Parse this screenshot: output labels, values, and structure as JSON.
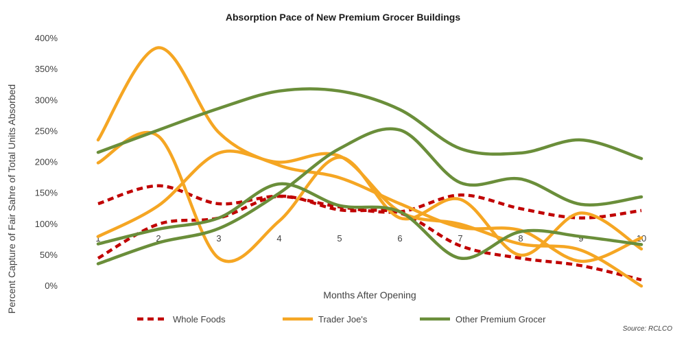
{
  "chart_data": {
    "type": "line",
    "title": "Absorption Pace of New Premium Grocer Buildings",
    "xlabel": "Months After Opening",
    "ylabel": "Percent Capture of Fair Sahre of Total Units Absorbed",
    "source": "Source: RCLCO",
    "x": [
      1,
      2,
      3,
      4,
      5,
      6,
      7,
      8,
      9,
      10
    ],
    "x_tick_labels": [
      "1",
      "2",
      "3",
      "4",
      "5",
      "6",
      "7",
      "8",
      "9",
      "10"
    ],
    "ylim": [
      0,
      400
    ],
    "y_ticks": [
      0,
      50,
      100,
      150,
      200,
      250,
      300,
      350,
      400
    ],
    "y_tick_labels": [
      "0%",
      "50%",
      "100%",
      "150%",
      "200%",
      "250%",
      "300%",
      "350%",
      "400%"
    ],
    "grid": false,
    "legend_position": "bottom",
    "series": [
      {
        "name": "Whole Foods",
        "group": "Whole Foods",
        "color": "#c00000",
        "dash": true,
        "values": [
          133,
          162,
          133,
          145,
          128,
          120,
          147,
          125,
          110,
          122
        ]
      },
      {
        "name": "",
        "group": "Whole Foods",
        "color": "#c00000",
        "dash": true,
        "values": [
          45,
          100,
          110,
          145,
          123,
          118,
          65,
          45,
          33,
          10
        ]
      },
      {
        "name": "Trader Joe's",
        "group": "Trader Joe's",
        "color": "#f5a623",
        "dash": false,
        "values": [
          236,
          385,
          248,
          195,
          175,
          133,
          95,
          90,
          40,
          78
        ]
      },
      {
        "name": "",
        "group": "Trader Joe's",
        "color": "#f5a623",
        "dash": false,
        "values": [
          199,
          242,
          45,
          105,
          208,
          110,
          140,
          50,
          118,
          60
        ]
      },
      {
        "name": "",
        "group": "Trader Joe's",
        "color": "#f5a623",
        "dash": false,
        "values": [
          80,
          130,
          215,
          200,
          210,
          120,
          100,
          68,
          58,
          0
        ]
      },
      {
        "name": "Other Premium Grocer",
        "group": "Other Premium Grocer",
        "color": "#6a8e3a",
        "dash": false,
        "values": [
          216,
          252,
          287,
          315,
          315,
          285,
          222,
          215,
          236,
          206
        ]
      },
      {
        "name": "",
        "group": "Other Premium Grocer",
        "color": "#6a8e3a",
        "dash": false,
        "values": [
          68,
          92,
          110,
          165,
          130,
          120,
          45,
          88,
          80,
          67
        ]
      },
      {
        "name": "",
        "group": "Other Premium Grocer",
        "color": "#6a8e3a",
        "dash": false,
        "values": [
          36,
          70,
          93,
          150,
          222,
          252,
          167,
          173,
          132,
          144
        ]
      }
    ],
    "legend": [
      {
        "label": "Whole Foods",
        "color": "#c00000",
        "dash": true
      },
      {
        "label": "Trader Joe's",
        "color": "#f5a623",
        "dash": false
      },
      {
        "label": "Other Premium Grocer",
        "color": "#6a8e3a",
        "dash": false
      }
    ]
  }
}
